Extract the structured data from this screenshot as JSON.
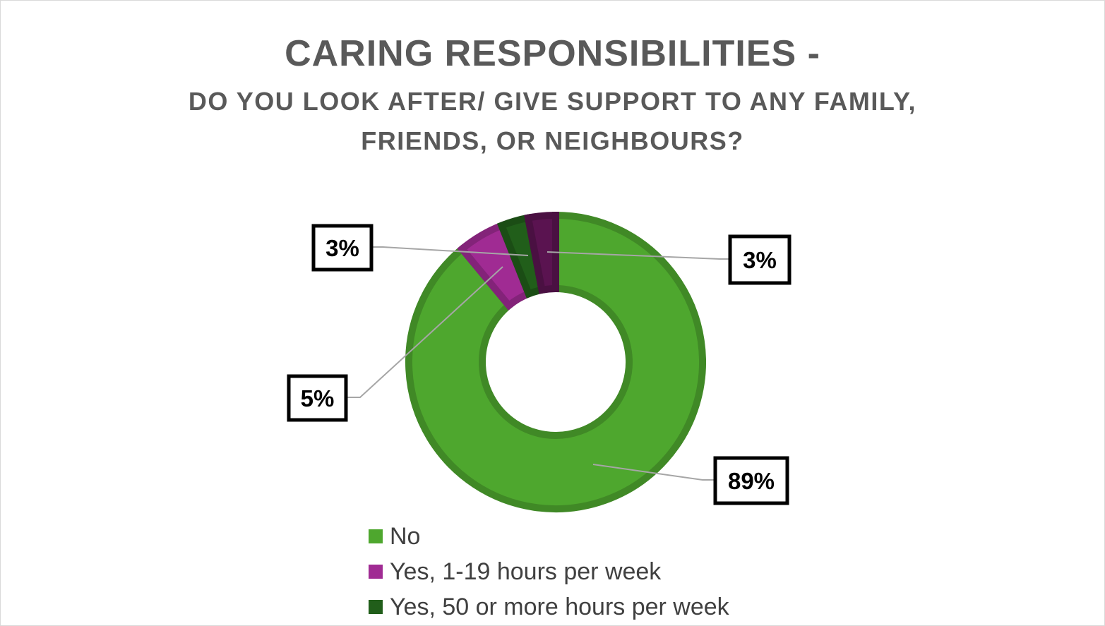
{
  "chart_data": {
    "type": "pie",
    "donut": true,
    "title": "CARING RESPONSIBILITIES -",
    "subtitle_lines": [
      "DO YOU LOOK AFTER/ GIVE SUPPORT TO ANY FAMILY,",
      "FRIENDS, OR NEIGHBOURS?"
    ],
    "slices": [
      {
        "name": "No",
        "value": 89,
        "label": "89%",
        "color": "#4ea72e"
      },
      {
        "name": "Yes, 1-19 hours per week",
        "value": 5,
        "label": "5%",
        "color": "#a02b93"
      },
      {
        "name": "Yes, 50 or more hours per week",
        "value": 3,
        "label": "3%",
        "color": "#215e1a"
      },
      {
        "name": "",
        "value": 3,
        "label": "3%",
        "color": "#5a1350"
      }
    ],
    "legend": {
      "position": "bottom",
      "items": [
        {
          "label": "No",
          "color": "#4ea72e"
        },
        {
          "label": "Yes, 1-19 hours per week",
          "color": "#a02b93"
        },
        {
          "label": "Yes, 50 or more hours per week",
          "color": "#215e1a"
        }
      ]
    }
  }
}
